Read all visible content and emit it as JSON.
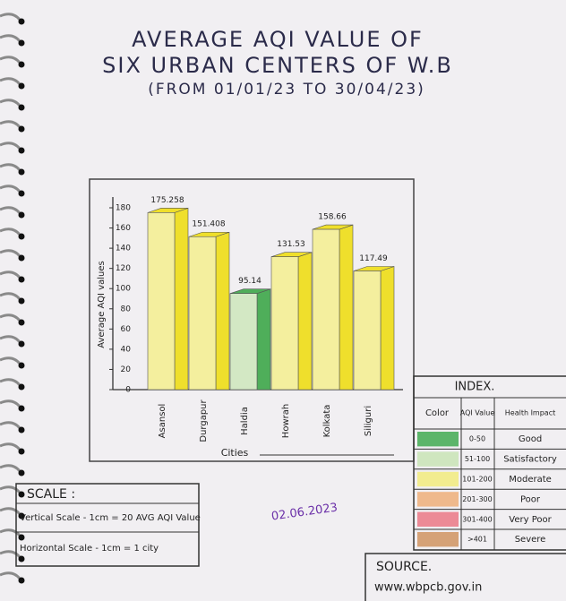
{
  "chart_data": {
    "type": "bar3d",
    "title": [
      "AVERAGE AQI VALUE OF",
      "SIX URBAN CENTERS OF W.B",
      "(FROM 01/01/23 TO 30/04/23)"
    ],
    "categories": [
      "Asansol",
      "Durgapur",
      "Haldia",
      "Howrah",
      "Kolkata",
      "Siliguri"
    ],
    "values": [
      175.258,
      151.408,
      95.14,
      131.53,
      158.66,
      117.49
    ],
    "colors": [
      "#f4ef9e",
      "#f4ef9e",
      "#d3e8c4",
      "#f4ef9e",
      "#f4ef9e",
      "#f4ef9e"
    ],
    "side_colors": [
      "#efdf2c",
      "#efdf2c",
      "#4fae5a",
      "#efdf2c",
      "#efdf2c",
      "#efdf2c"
    ],
    "ylim": [
      0,
      180
    ],
    "yticks": [
      0,
      20,
      40,
      60,
      80,
      100,
      120,
      140,
      160,
      180
    ],
    "ylabel": "Average AQI values",
    "xlabel": "Cities"
  },
  "index": {
    "title": "INDEX.",
    "headers": [
      "Color",
      "AQI Value",
      "Health Impact"
    ],
    "rows": [
      {
        "color": "#5cb56a",
        "range": "0-50",
        "impact": "Good"
      },
      {
        "color": "#cfe6bf",
        "range": "51-100",
        "impact": "Satisfactory"
      },
      {
        "color": "#f2ec8f",
        "range": "101-200",
        "impact": "Moderate"
      },
      {
        "color": "#efb98c",
        "range": "201-300",
        "impact": "Poor"
      },
      {
        "color": "#ec8a96",
        "range": "301-400",
        "impact": "Very Poor"
      },
      {
        "color": "#d5a277",
        "range": ">401",
        "impact": "Severe"
      }
    ]
  },
  "scale": {
    "title": "SCALE :",
    "vertical": "Vertical Scale - 1cm = 20 AVG AQI Value",
    "horizontal": "Horizontal Scale - 1cm = 1 city"
  },
  "date": "02.06.2023",
  "source": {
    "title": "SOURCE.",
    "url": "www.wbpcb.gov.in"
  }
}
